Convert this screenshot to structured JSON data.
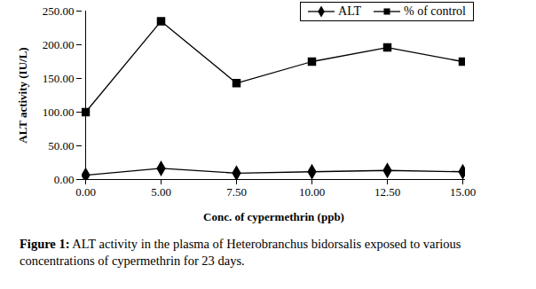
{
  "chart_data": {
    "type": "line",
    "caption": "Figure 1: ALT activity in the plasma of Heterobranchus bidorsalis exposed to various concentrations of cypermethrin for 23 days.",
    "x_label": "Conc. of cypermethrin (ppb)",
    "y_label": "ALT activity (IU/L)",
    "categories": [
      "0.00",
      "5.00",
      "7.50",
      "10.00",
      "12.50",
      "15.00"
    ],
    "series": [
      {
        "name": "ALT",
        "color": "#000000",
        "marker": "diamond",
        "values": [
          6.5,
          16.5,
          9.5,
          11.5,
          13.5,
          11.5
        ],
        "errors": [
          1.5,
          3,
          2,
          3,
          3.5,
          3
        ]
      },
      {
        "name": "% of control",
        "color": "#000000",
        "marker": "square",
        "values": [
          100,
          235,
          143,
          175,
          196,
          175
        ]
      }
    ],
    "ylim": [
      0,
      250
    ],
    "yticks": [
      {
        "value": 0,
        "label": "0.00"
      },
      {
        "value": 50,
        "label": "50.00"
      },
      {
        "value": 100,
        "label": "100.00"
      },
      {
        "value": 150,
        "label": "150.00"
      },
      {
        "value": 200,
        "label": "200.00"
      },
      {
        "value": 250,
        "label": "250.00"
      }
    ],
    "legend": "top-right",
    "grid": false
  }
}
